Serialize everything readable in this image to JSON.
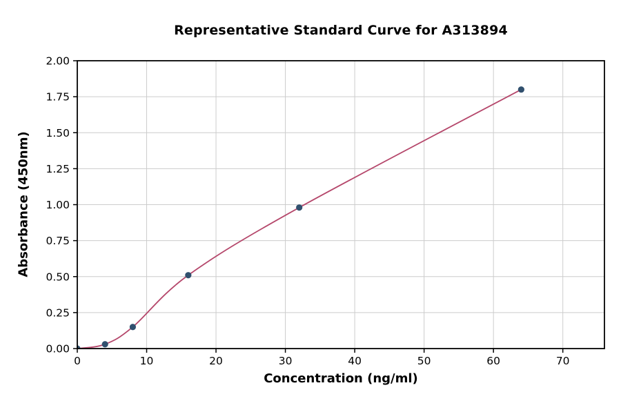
{
  "chart_data": {
    "type": "scatter",
    "title": "Representative Standard Curve for A313894",
    "xlabel": "Concentration (ng/ml)",
    "ylabel": "Absorbance (450nm)",
    "x": [
      0,
      4,
      8,
      16,
      32,
      64
    ],
    "y": [
      0.0,
      0.03,
      0.15,
      0.51,
      0.98,
      1.8
    ],
    "fit_curve": true,
    "xlim": [
      0,
      76
    ],
    "ylim": [
      0,
      2.0
    ],
    "xticks": [
      0,
      10,
      20,
      30,
      40,
      50,
      60,
      70
    ],
    "yticks": [
      0,
      0.25,
      0.5,
      0.75,
      1.0,
      1.25,
      1.5,
      1.75,
      2.0
    ],
    "grid": true,
    "legend": "none",
    "colors": {
      "points": "#31506e",
      "curve": "#b5476b",
      "grid": "#cccccc",
      "axis": "#000000",
      "background": "#ffffff"
    }
  }
}
